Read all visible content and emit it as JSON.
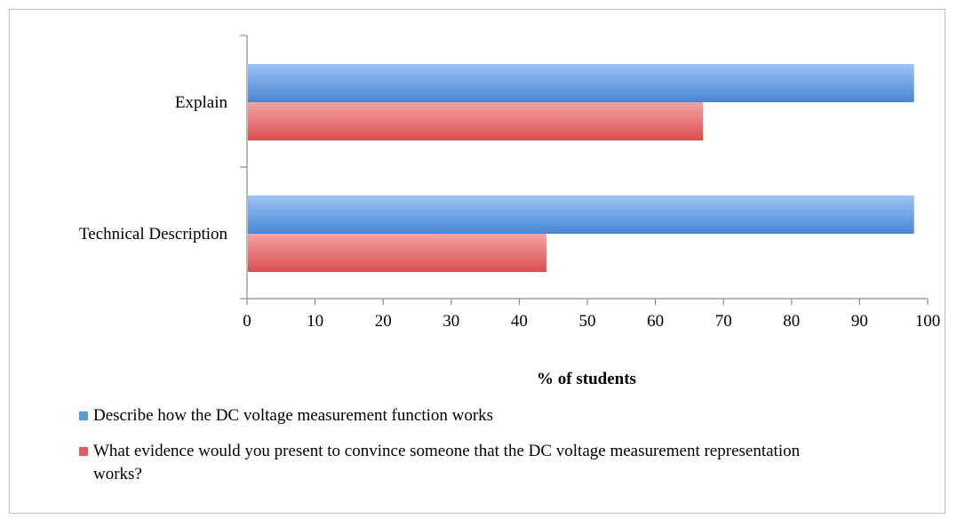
{
  "chart_data": {
    "type": "bar",
    "orientation": "horizontal",
    "categories": [
      "Technical Description",
      "Explain"
    ],
    "series": [
      {
        "name": "Describe how the DC voltage measurement function works",
        "values": [
          98,
          98
        ],
        "color": "#5b9bd5"
      },
      {
        "name": "What evidence would you present to convince someone that the DC voltage measurement representation works?",
        "values": [
          44,
          67
        ],
        "color": "#e05b5b"
      }
    ],
    "xlabel": "% of students",
    "ylabel": "",
    "xlim": [
      0,
      100
    ],
    "xticks": [
      "0",
      "10",
      "20",
      "30",
      "40",
      "50",
      "60",
      "70",
      "80",
      "90",
      "100"
    ],
    "grid": false,
    "legend_position": "bottom"
  }
}
